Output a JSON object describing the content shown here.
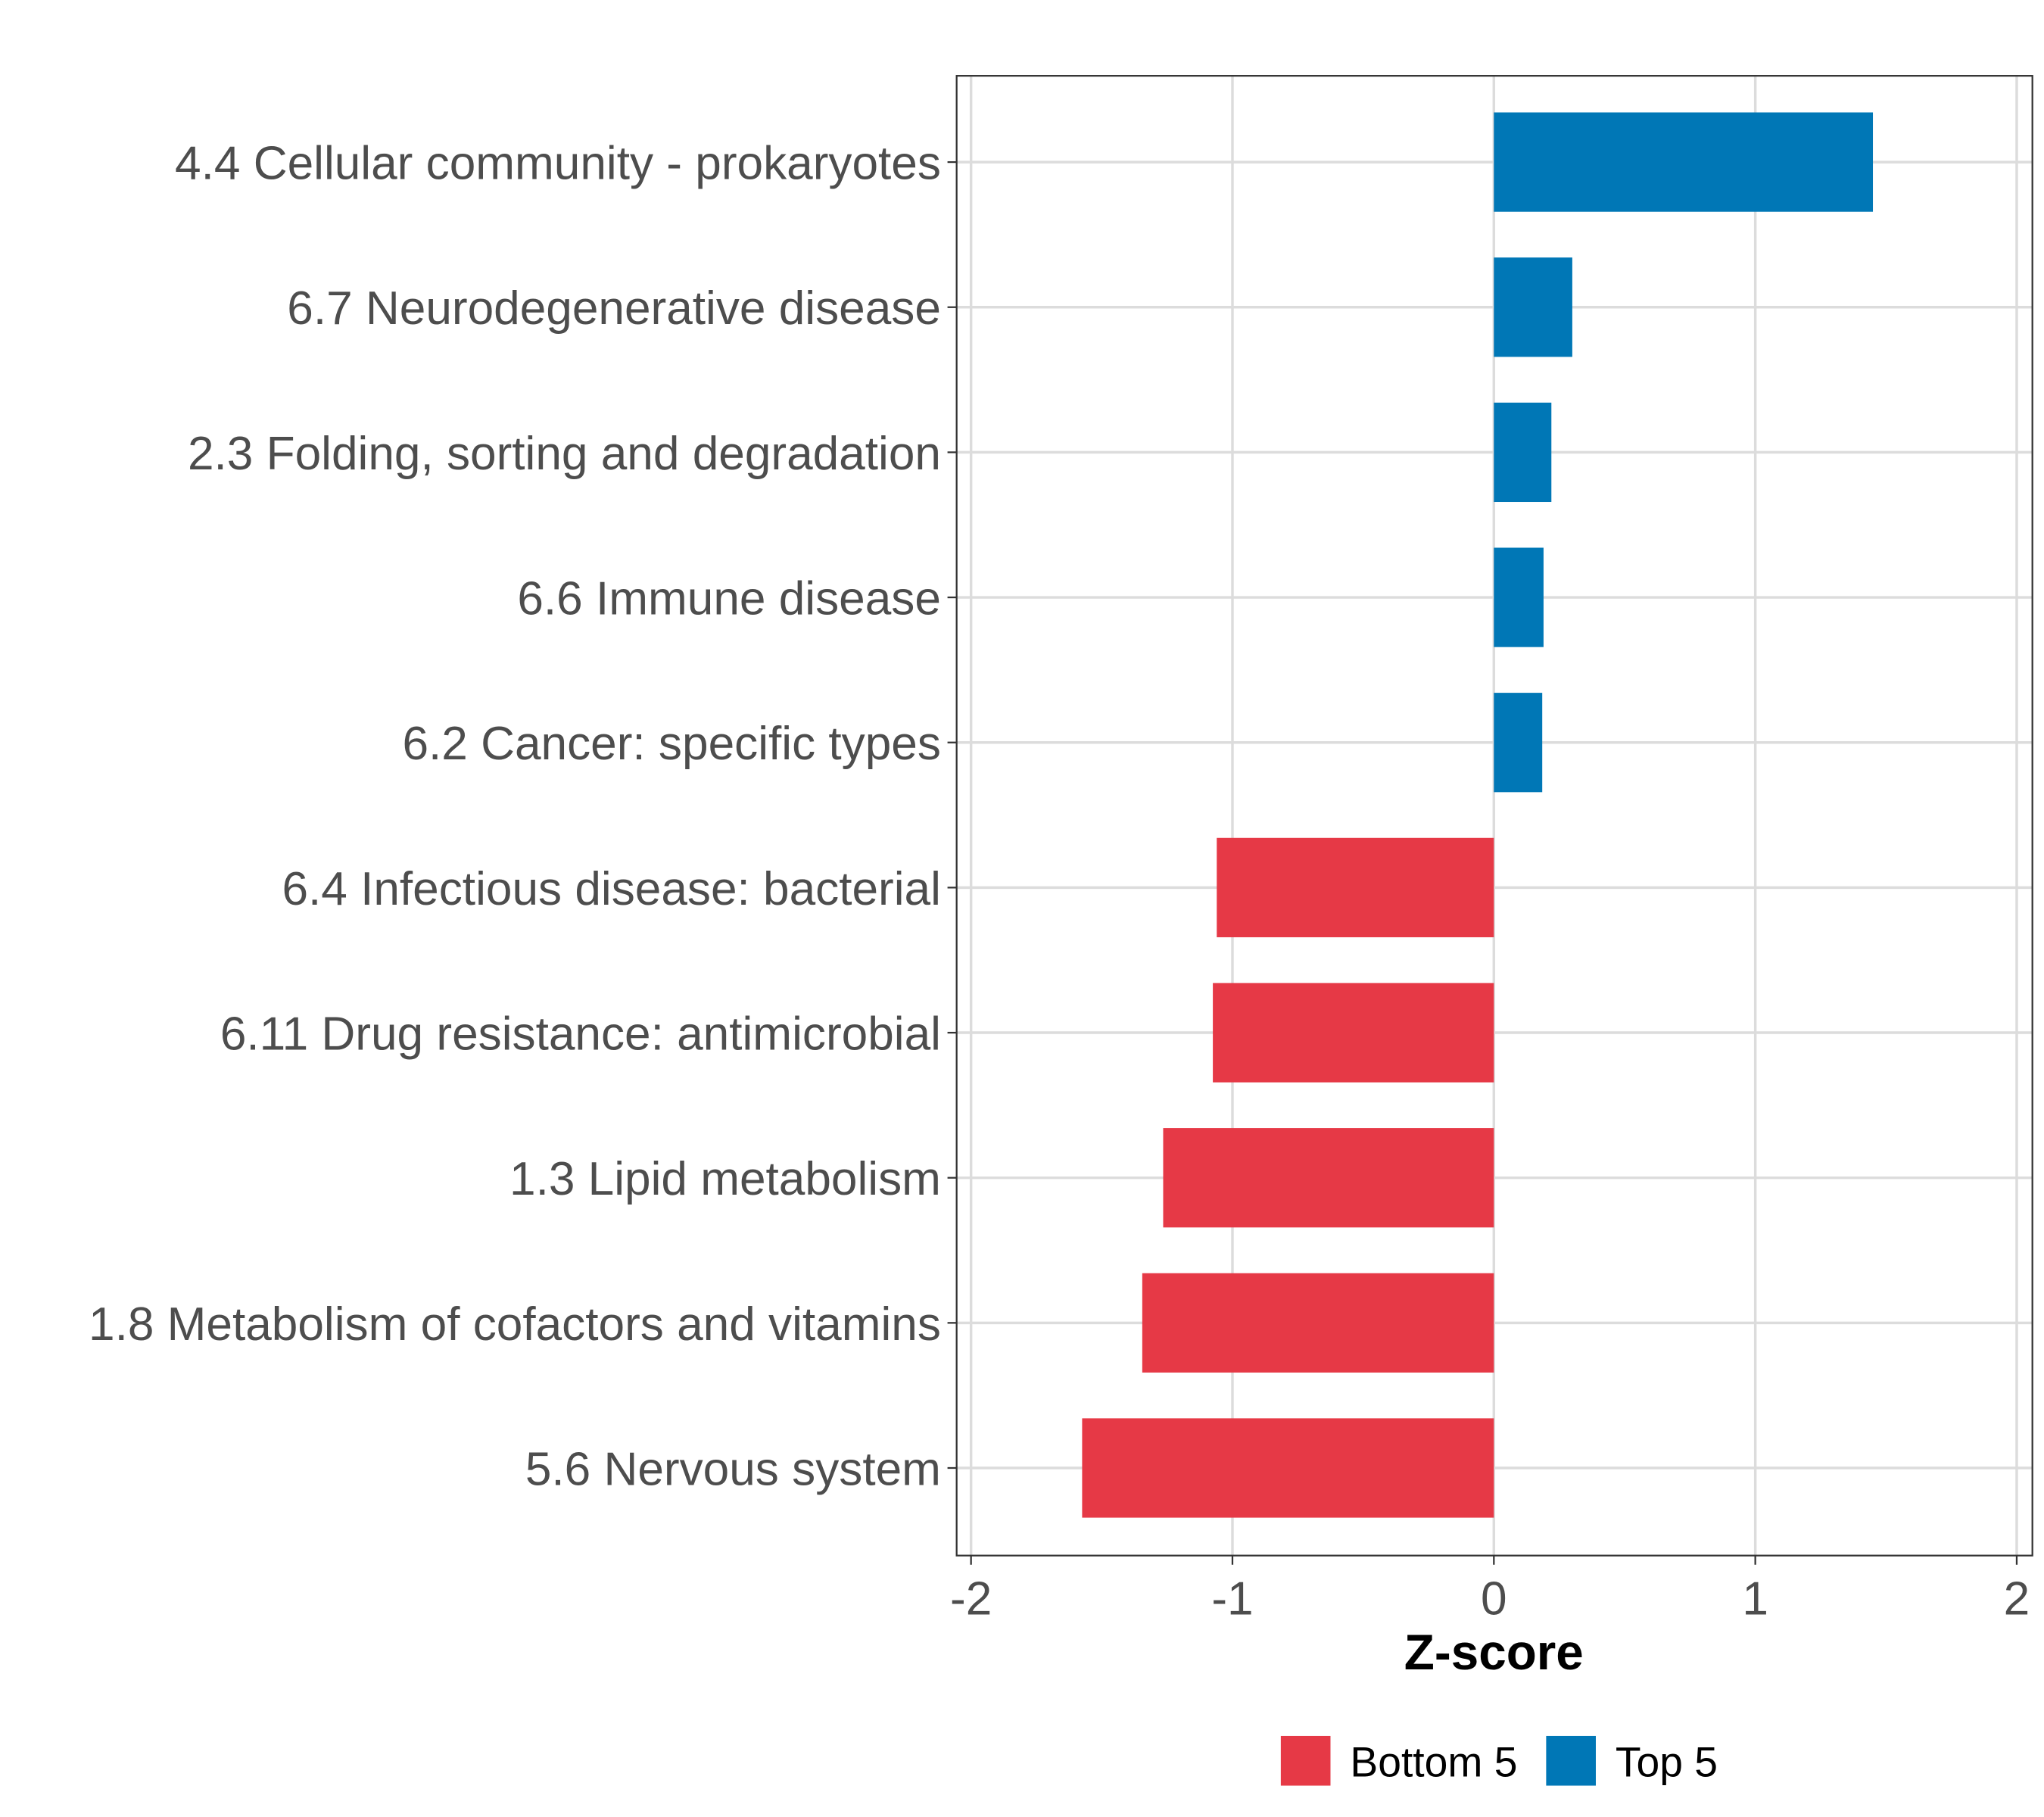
{
  "chart_data": {
    "type": "bar",
    "orientation": "horizontal",
    "title": "",
    "xlabel": "Z-score",
    "ylabel": "",
    "xlim": [
      -2,
      2
    ],
    "xticks": [
      "-2",
      "-1",
      "0",
      "1",
      "2"
    ],
    "grid": true,
    "legend_position": "bottom",
    "categories": [
      "4.4 Cellular community - prokaryotes",
      "6.7 Neurodegenerative disease",
      "2.3 Folding, sorting and degradation",
      "6.6 Immune disease",
      "6.2 Cancer: specific types",
      "6.4 Infectious disease: bacterial",
      "6.11 Drug resistance: antimicrobial",
      "1.3 Lipid metabolism",
      "1.8 Metabolism of cofactors and vitamins",
      "5.6 Nervous system"
    ],
    "values": [
      1.45,
      0.3,
      0.22,
      0.19,
      0.185,
      -1.06,
      -1.075,
      -1.265,
      -1.345,
      -1.575
    ],
    "groups": [
      "Top 5",
      "Top 5",
      "Top 5",
      "Top 5",
      "Top 5",
      "Bottom 5",
      "Bottom 5",
      "Bottom 5",
      "Bottom 5",
      "Bottom 5"
    ],
    "legend": [
      {
        "label": "Bottom 5",
        "color": "#E63946"
      },
      {
        "label": "Top 5",
        "color": "#0077B6"
      }
    ]
  }
}
